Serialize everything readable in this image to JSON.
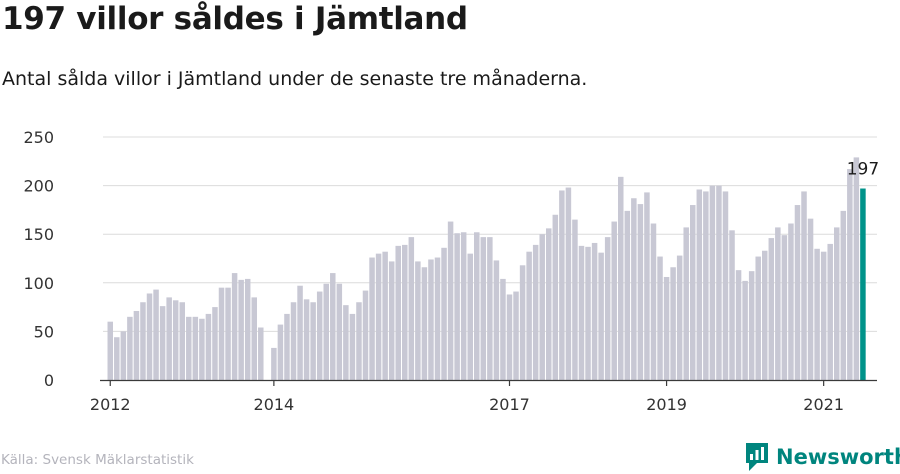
{
  "header": {
    "title": "197 villor såldes i Jämtland",
    "subtitle": "Antal sålda villor i Jämtland under de senaste tre månaderna."
  },
  "footer": {
    "source": "Källa: Svensk Mäklarstatistik",
    "brand": "Newsworthy",
    "brand_icon": "newsworthy-logo-icon"
  },
  "colors": {
    "bar": "#c8c8d4",
    "highlight": "#00938a",
    "grid": "#dcdcdc",
    "axis": "#3a3a3a",
    "brand": "#00857e"
  },
  "chart_data": {
    "type": "bar",
    "title": "",
    "xlabel": "",
    "ylabel": "",
    "ylim": [
      0,
      250
    ],
    "yticks": [
      0,
      50,
      100,
      150,
      200,
      250
    ],
    "xticks": [
      "2012",
      "2014",
      "2017",
      "2019",
      "2021"
    ],
    "grid": true,
    "highlight_label": "197",
    "values": [
      60,
      44,
      50,
      65,
      71,
      80,
      89,
      93,
      76,
      85,
      82,
      80,
      65,
      65,
      63,
      68,
      75,
      95,
      95,
      110,
      103,
      104,
      85,
      54,
      0,
      33,
      57,
      68,
      80,
      97,
      83,
      80,
      91,
      99,
      110,
      99,
      77,
      68,
      80,
      92,
      126,
      130,
      132,
      122,
      138,
      139,
      147,
      122,
      116,
      124,
      126,
      136,
      163,
      151,
      152,
      130,
      152,
      147,
      147,
      123,
      104,
      88,
      91,
      118,
      132,
      139,
      150,
      156,
      170,
      195,
      198,
      165,
      138,
      137,
      141,
      131,
      147,
      163,
      209,
      174,
      187,
      181,
      193,
      161,
      127,
      106,
      116,
      128,
      157,
      180,
      196,
      194,
      200,
      200,
      194,
      154,
      113,
      102,
      112,
      127,
      133,
      146,
      157,
      149,
      161,
      180,
      194,
      166,
      135,
      132,
      140,
      157,
      174,
      217,
      229,
      197
    ],
    "year_tick_index": {
      "2012": 0,
      "2014": 25,
      "2017": 61,
      "2019": 85,
      "2021": 109
    }
  }
}
